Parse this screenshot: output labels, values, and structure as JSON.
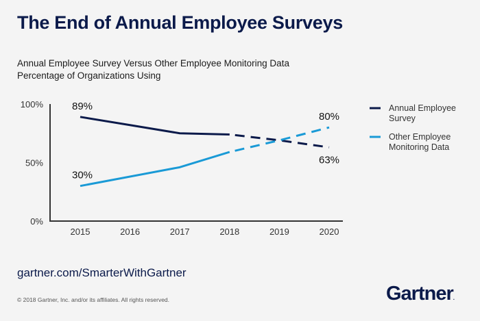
{
  "header": {
    "title": "The End of Annual Employee Surveys",
    "subtitle_line1": "Annual Employee Survey Versus Other Employee Monitoring Data",
    "subtitle_line2": "Percentage of Organizations Using"
  },
  "footer": {
    "url": "gartner.com/SmarterWithGartner",
    "copyright": "© 2018 Gartner, Inc. and/or its affiliates. All rights reserved.",
    "logo": "Gartner",
    "logo_mark": "."
  },
  "colors": {
    "annual": "#0b1a4a",
    "other": "#1a9ad6",
    "axis": "#333333"
  },
  "chart_data": {
    "type": "line",
    "title": "Annual Employee Survey Versus Other Employee Monitoring Data",
    "subtitle": "Percentage of Organizations Using",
    "xlabel": "",
    "ylabel": "",
    "x": [
      "2015",
      "2016",
      "2017",
      "2018",
      "2019",
      "2020"
    ],
    "ylim": [
      0,
      100
    ],
    "yticks": [
      0,
      50,
      100
    ],
    "ytick_labels": [
      "0%",
      "50%",
      "100%"
    ],
    "grid": false,
    "legend_position": "right",
    "projected_from": "2018",
    "series": [
      {
        "name": "Annual Employee Survey",
        "legend_label_line1": "Annual Employee",
        "legend_label_line2": "Survey",
        "values": [
          89,
          82,
          75,
          74,
          69,
          63
        ],
        "labels": {
          "start": "89%",
          "end": "63%"
        }
      },
      {
        "name": "Other Employee Monitoring Data",
        "legend_label_line1": "Other Employee",
        "legend_label_line2": "Monitoring Data",
        "values": [
          30,
          38,
          46,
          59,
          69,
          80
        ],
        "labels": {
          "start": "30%",
          "end": "80%"
        }
      }
    ]
  }
}
